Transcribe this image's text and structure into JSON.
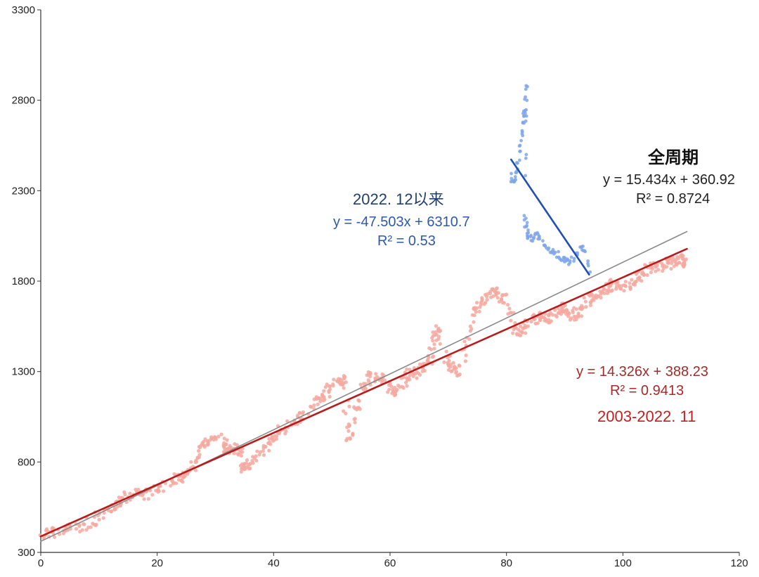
{
  "chart_data": {
    "type": "scatter",
    "xlim": [
      0,
      120
    ],
    "ylim": [
      300,
      3300
    ],
    "x_ticks": [
      0,
      20,
      40,
      60,
      80,
      100,
      120
    ],
    "y_ticks": [
      300,
      800,
      1300,
      1800,
      2300,
      2800,
      3300
    ],
    "grid": false,
    "colors": {
      "historical_points": "#f4a9a0",
      "recent_points": "#7ea6ea",
      "full_trend": "#8a8a8a",
      "historical_trend": "#b71c1c",
      "recent_trend": "#1f4fb0"
    },
    "series": [
      {
        "name": "2003-2022.11",
        "trendline": {
          "slope": 14.326,
          "intercept": 388.23,
          "x_range": [
            0,
            111
          ]
        },
        "anchors": [
          [
            0,
            390
          ],
          [
            3,
            420
          ],
          [
            7,
            440
          ],
          [
            10,
            500
          ],
          [
            13,
            560
          ],
          [
            15,
            620
          ],
          [
            18,
            620
          ],
          [
            21,
            660
          ],
          [
            24,
            720
          ],
          [
            26,
            770
          ],
          [
            28,
            900
          ],
          [
            30,
            950
          ],
          [
            32,
            880
          ],
          [
            34,
            860
          ],
          [
            35,
            760
          ],
          [
            37,
            830
          ],
          [
            40,
            920
          ],
          [
            42,
            1000
          ],
          [
            45,
            1060
          ],
          [
            48,
            1150
          ],
          [
            50,
            1220
          ],
          [
            52,
            1260
          ],
          [
            53,
            920
          ],
          [
            55,
            1200
          ],
          [
            57,
            1280
          ],
          [
            59,
            1250
          ],
          [
            61,
            1180
          ],
          [
            63,
            1280
          ],
          [
            65,
            1300
          ],
          [
            67,
            1360
          ],
          [
            68,
            1560
          ],
          [
            70,
            1330
          ],
          [
            72,
            1300
          ],
          [
            74,
            1600
          ],
          [
            76,
            1700
          ],
          [
            78,
            1740
          ],
          [
            80,
            1680
          ],
          [
            82,
            1500
          ],
          [
            84,
            1590
          ],
          [
            86,
            1600
          ],
          [
            88,
            1600
          ],
          [
            90,
            1660
          ],
          [
            92,
            1600
          ],
          [
            94,
            1700
          ],
          [
            96,
            1720
          ],
          [
            98,
            1780
          ],
          [
            100,
            1760
          ],
          [
            102,
            1800
          ],
          [
            104,
            1860
          ],
          [
            106,
            1880
          ],
          [
            108,
            1900
          ],
          [
            110,
            1920
          ],
          [
            111,
            1900
          ]
        ]
      },
      {
        "name": "2022.12以来",
        "trendline": {
          "slope": -47.503,
          "intercept": 6310.7,
          "x_range": [
            80.8,
            94.2
          ]
        },
        "anchors": [
          [
            80.8,
            2380
          ],
          [
            81.3,
            2340
          ],
          [
            81.8,
            2420
          ],
          [
            82.3,
            2500
          ],
          [
            82.6,
            2620
          ],
          [
            82.9,
            2700
          ],
          [
            83.2,
            2760
          ],
          [
            83.5,
            2880
          ],
          [
            83.0,
            2180
          ],
          [
            83.4,
            2100
          ],
          [
            83.8,
            2040
          ],
          [
            84.5,
            2040
          ],
          [
            85.5,
            2050
          ],
          [
            86.5,
            2010
          ],
          [
            87.5,
            1960
          ],
          [
            88.5,
            1950
          ],
          [
            89.5,
            1930
          ],
          [
            90.5,
            1900
          ],
          [
            91.5,
            1920
          ],
          [
            92.5,
            1980
          ],
          [
            93.5,
            1990
          ],
          [
            94.2,
            1850
          ]
        ]
      },
      {
        "name": "全周期",
        "trendline": {
          "slope": 15.434,
          "intercept": 360.92,
          "x_range": [
            0,
            111
          ]
        }
      }
    ],
    "annotations": {
      "recent": {
        "title": "2022. 12以来",
        "equation": "y = -47.503x + 6310.7",
        "r2": "R² = 0.53"
      },
      "full": {
        "title": "全周期",
        "equation": "y = 15.434x + 360.92",
        "r2": "R² = 0.8724"
      },
      "historical": {
        "equation": "y = 14.326x + 388.23",
        "r2": "R² = 0.9413",
        "period": "2003-2022. 11"
      }
    }
  }
}
